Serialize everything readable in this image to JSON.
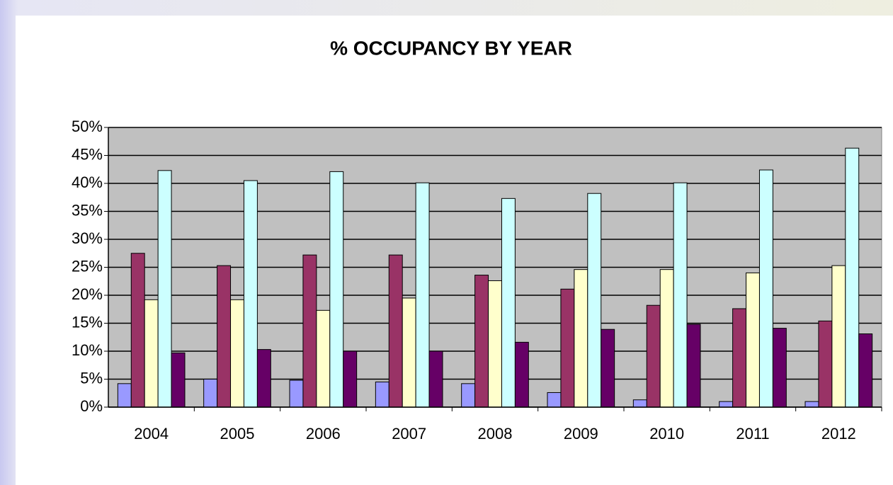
{
  "chart_data": {
    "type": "bar",
    "title": "% OCCUPANCY BY YEAR",
    "categories": [
      "2004",
      "2005",
      "2006",
      "2007",
      "2008",
      "2009",
      "2010",
      "2011",
      "2012"
    ],
    "series": [
      {
        "color": "#9999ff",
        "values": [
          4.2,
          5.0,
          4.8,
          4.5,
          4.2,
          2.6,
          1.3,
          1.0,
          1.0
        ]
      },
      {
        "color": "#993366",
        "values": [
          27.5,
          25.3,
          27.2,
          27.2,
          23.6,
          21.1,
          18.2,
          17.6,
          15.4
        ]
      },
      {
        "color": "#ffffcc",
        "values": [
          19.2,
          19.2,
          17.3,
          19.5,
          22.6,
          24.6,
          24.6,
          24.0,
          25.3
        ]
      },
      {
        "color": "#ccffff",
        "values": [
          42.3,
          40.5,
          42.1,
          40.1,
          37.3,
          38.2,
          40.1,
          42.4,
          46.3
        ]
      },
      {
        "color": "#660066",
        "values": [
          9.7,
          10.3,
          10.0,
          10.0,
          11.6,
          13.9,
          14.8,
          14.1,
          13.1
        ]
      }
    ],
    "ylim": [
      0,
      50
    ],
    "yticks": [
      {
        "value": 0,
        "label": "0%"
      },
      {
        "value": 5,
        "label": "5%"
      },
      {
        "value": 10,
        "label": "10%"
      },
      {
        "value": 15,
        "label": "15%"
      },
      {
        "value": 20,
        "label": "20%"
      },
      {
        "value": 25,
        "label": "25%"
      },
      {
        "value": 30,
        "label": "30%"
      },
      {
        "value": 35,
        "label": "35%"
      },
      {
        "value": 40,
        "label": "40%"
      },
      {
        "value": 45,
        "label": "45%"
      },
      {
        "value": 50,
        "label": "50%"
      }
    ],
    "grid": true
  }
}
